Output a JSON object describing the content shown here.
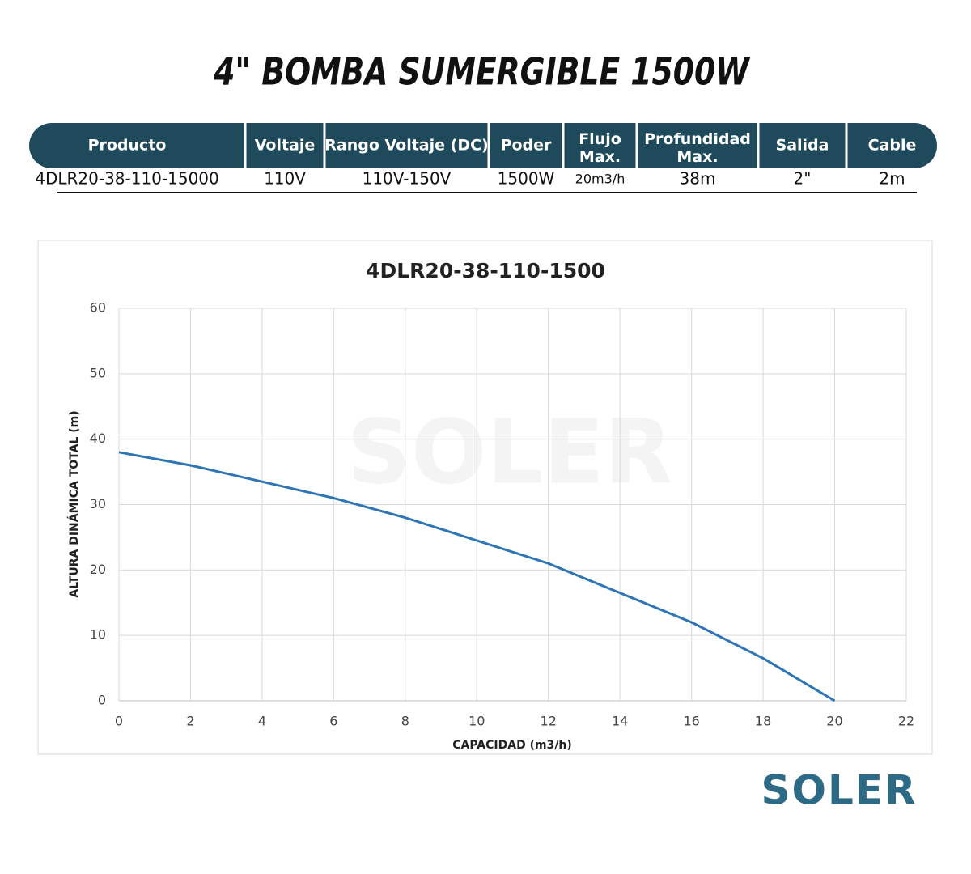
{
  "header": {
    "title": "4\" BOMBA SUMERGIBLE 1500W"
  },
  "table": {
    "headers": [
      "Producto",
      "Voltaje",
      "Rango Voltaje (DC)",
      "Poder",
      "Flujo\nMax.",
      "Profundidad\nMax.",
      "Salida",
      "Cable"
    ],
    "rows": [
      [
        "4DLR20-38-110-15000",
        "110V",
        "110V-150V",
        "1500W",
        "20m3/h",
        "38m",
        "2\"",
        "2m"
      ]
    ]
  },
  "chart_data": {
    "type": "line",
    "title": "4DLR20-38-110-1500",
    "x_label": "CAPACIDAD (m3/h)",
    "y_label": "ALTURA DINÁMICA TOTAL (m)",
    "x": [
      0,
      2,
      4,
      6,
      8,
      10,
      12,
      14,
      16,
      18,
      20
    ],
    "series": [
      {
        "color": "#2e75b6",
        "values": [
          38,
          36,
          33.5,
          31,
          28,
          24.5,
          21,
          16.5,
          12,
          6.5,
          0
        ]
      }
    ],
    "xlim": [
      0,
      22
    ],
    "xticks": [
      0,
      2,
      4,
      6,
      8,
      10,
      12,
      14,
      16,
      18,
      20,
      22
    ],
    "ylim": [
      0,
      60
    ],
    "yticks": [
      0,
      10,
      20,
      30,
      40,
      50,
      60
    ],
    "grid": true
  },
  "logo": {
    "text": "SOLER"
  }
}
